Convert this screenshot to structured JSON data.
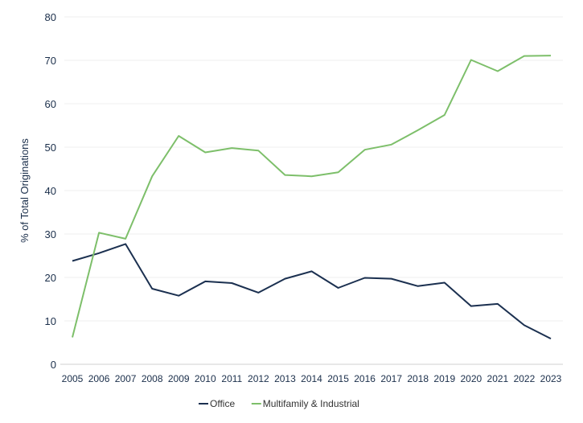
{
  "chart_data": {
    "type": "line",
    "title": "",
    "xlabel": "",
    "ylabel": "% of Total Originations",
    "ylim": [
      0,
      80
    ],
    "yticks": [
      0,
      10,
      20,
      30,
      40,
      50,
      60,
      70,
      80
    ],
    "grid": true,
    "legend_position": "bottom-center",
    "x": [
      "2005",
      "2006",
      "2007",
      "2008",
      "2009",
      "2010",
      "2011",
      "2012",
      "2013",
      "2014",
      "2015",
      "2016",
      "2017",
      "2018",
      "2019",
      "2020",
      "2021",
      "2022",
      "2023"
    ],
    "series": [
      {
        "name": "Office",
        "color": "#1b3050",
        "values": [
          23.8,
          25.6,
          27.7,
          17.4,
          15.8,
          19.1,
          18.7,
          16.5,
          19.7,
          21.4,
          17.6,
          19.9,
          19.7,
          18.0,
          18.8,
          13.4,
          13.9,
          9.0,
          5.9
        ]
      },
      {
        "name": "Multifamily & Industrial",
        "color": "#7dbf6a",
        "values": [
          6.2,
          30.3,
          28.9,
          43.3,
          52.6,
          48.8,
          49.8,
          49.2,
          43.6,
          43.3,
          44.2,
          49.4,
          50.6,
          53.9,
          57.4,
          70.1,
          67.5,
          71.0,
          71.1
        ]
      }
    ]
  }
}
